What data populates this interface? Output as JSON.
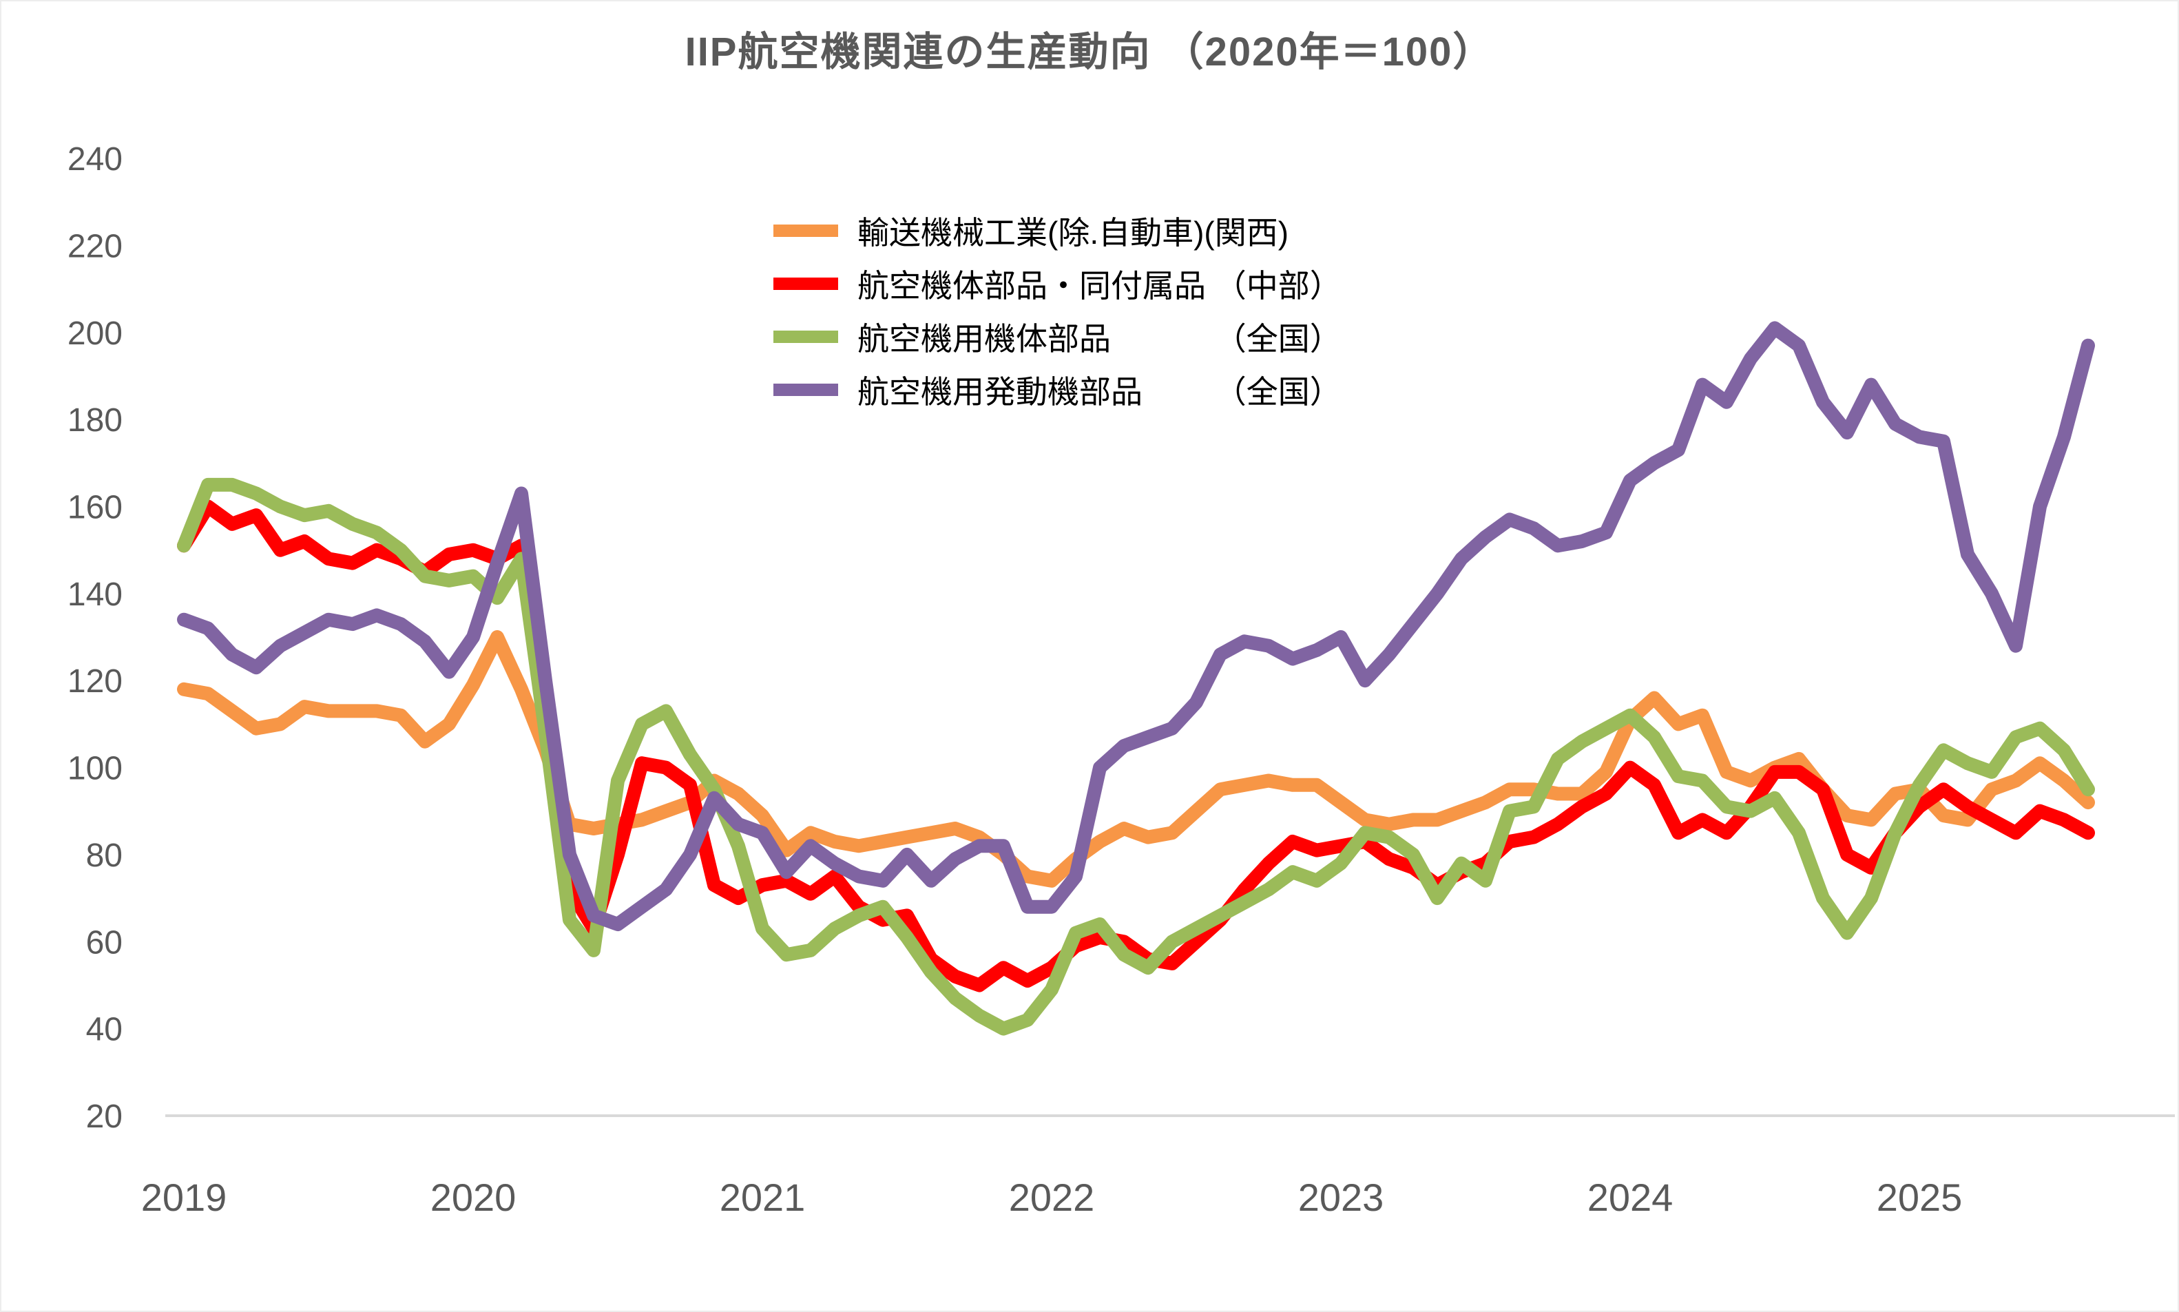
{
  "title": "IIP航空機関連の生産動向 （2020年＝100）",
  "chart_data": {
    "type": "line",
    "grid": "off",
    "legend_position": "upper-center-left",
    "ylim": [
      20,
      240
    ],
    "y_ticks": [
      240,
      220,
      200,
      180,
      160,
      140,
      120,
      100,
      80,
      60,
      40,
      20
    ],
    "x_year_ticks": [
      "2019",
      "2020",
      "2021",
      "2022",
      "2023",
      "2024",
      "2025"
    ],
    "x_start_month": "2019-01",
    "x_end_month": "2025-08",
    "months": [
      "2019-01",
      "2019-02",
      "2019-03",
      "2019-04",
      "2019-05",
      "2019-06",
      "2019-07",
      "2019-08",
      "2019-09",
      "2019-10",
      "2019-11",
      "2019-12",
      "2020-01",
      "2020-02",
      "2020-03",
      "2020-04",
      "2020-05",
      "2020-06",
      "2020-07",
      "2020-08",
      "2020-09",
      "2020-10",
      "2020-11",
      "2020-12",
      "2021-01",
      "2021-02",
      "2021-03",
      "2021-04",
      "2021-05",
      "2021-06",
      "2021-07",
      "2021-08",
      "2021-09",
      "2021-10",
      "2021-11",
      "2021-12",
      "2022-01",
      "2022-02",
      "2022-03",
      "2022-04",
      "2022-05",
      "2022-06",
      "2022-07",
      "2022-08",
      "2022-09",
      "2022-10",
      "2022-11",
      "2022-12",
      "2023-01",
      "2023-02",
      "2023-03",
      "2023-04",
      "2023-05",
      "2023-06",
      "2023-07",
      "2023-08",
      "2023-09",
      "2023-10",
      "2023-11",
      "2023-12",
      "2024-01",
      "2024-02",
      "2024-03",
      "2024-04",
      "2024-05",
      "2024-06",
      "2024-07",
      "2024-08",
      "2024-09",
      "2024-10",
      "2024-11",
      "2024-12",
      "2025-01",
      "2025-02",
      "2025-03",
      "2025-04",
      "2025-05",
      "2025-06",
      "2025-07",
      "2025-08"
    ],
    "series": [
      {
        "name": "輸送機械工業(除.自動車)(関西)",
        "color": "#F79646",
        "values": [
          118,
          117,
          113,
          109,
          110,
          114,
          113,
          113,
          113,
          112,
          106,
          110,
          119,
          130,
          118,
          104,
          87,
          86,
          87,
          88,
          90,
          92,
          97,
          94,
          89,
          81,
          85,
          83,
          82,
          83,
          84,
          85,
          86,
          84,
          80,
          75,
          74,
          79,
          83,
          86,
          84,
          85,
          90,
          95,
          96,
          97,
          96,
          96,
          92,
          88,
          87,
          88,
          88,
          90,
          92,
          95,
          95,
          94,
          94,
          99,
          111,
          116,
          110,
          112,
          99,
          97,
          100,
          102,
          95,
          89,
          88,
          94,
          95,
          89,
          88,
          95,
          97,
          101,
          97,
          92
        ]
      },
      {
        "name": "航空機体部品・同付属品 （中部）",
        "color": "#FF0000",
        "values": [
          151,
          160,
          156,
          158,
          150,
          152,
          148,
          147,
          150,
          148,
          145,
          149,
          150,
          148,
          151,
          110,
          72,
          63,
          80,
          101,
          100,
          96,
          73,
          70,
          73,
          74,
          71,
          75,
          68,
          65,
          66,
          56,
          52,
          50,
          54,
          51,
          54,
          59,
          61,
          60,
          56,
          55,
          60,
          65,
          72,
          78,
          83,
          81,
          82,
          83,
          79,
          77,
          73,
          76,
          78,
          83,
          84,
          87,
          91,
          94,
          100,
          96,
          85,
          88,
          85,
          91,
          99,
          99,
          95,
          80,
          77,
          85,
          91,
          95,
          91,
          88,
          85,
          90,
          88,
          85
        ]
      },
      {
        "name": "航空機用機体部品　　　 （全国）",
        "color": "#9BBB59",
        "values": [
          151,
          165,
          165,
          163,
          160,
          158,
          159,
          156,
          154,
          150,
          144,
          143,
          144,
          139,
          148,
          108,
          65,
          58,
          97,
          110,
          113,
          103,
          95,
          82,
          63,
          57,
          58,
          63,
          66,
          68,
          61,
          53,
          47,
          43,
          40,
          42,
          49,
          62,
          64,
          57,
          54,
          60,
          63,
          66,
          69,
          72,
          76,
          74,
          78,
          85,
          84,
          80,
          70,
          78,
          74,
          90,
          91,
          102,
          106,
          109,
          112,
          107,
          98,
          97,
          91,
          90,
          93,
          85,
          70,
          62,
          70,
          85,
          96,
          104,
          101,
          99,
          107,
          109,
          104,
          95
        ]
      },
      {
        "name": "航空機用発動機部品　　 （全国）",
        "color": "#8064A2",
        "values": [
          134,
          132,
          126,
          123,
          128,
          131,
          134,
          133,
          135,
          133,
          129,
          122,
          130,
          147,
          163,
          120,
          80,
          66,
          64,
          68,
          72,
          80,
          93,
          87,
          85,
          76,
          82,
          78,
          75,
          74,
          80,
          74,
          79,
          82,
          82,
          68,
          68,
          75,
          100,
          105,
          107,
          109,
          115,
          126,
          129,
          128,
          125,
          127,
          130,
          120,
          126,
          133,
          140,
          148,
          153,
          157,
          155,
          151,
          152,
          154,
          166,
          170,
          173,
          188,
          184,
          194,
          201,
          197,
          184,
          177,
          188,
          179,
          176,
          175,
          149,
          140,
          128,
          160,
          176,
          197
        ]
      }
    ]
  }
}
